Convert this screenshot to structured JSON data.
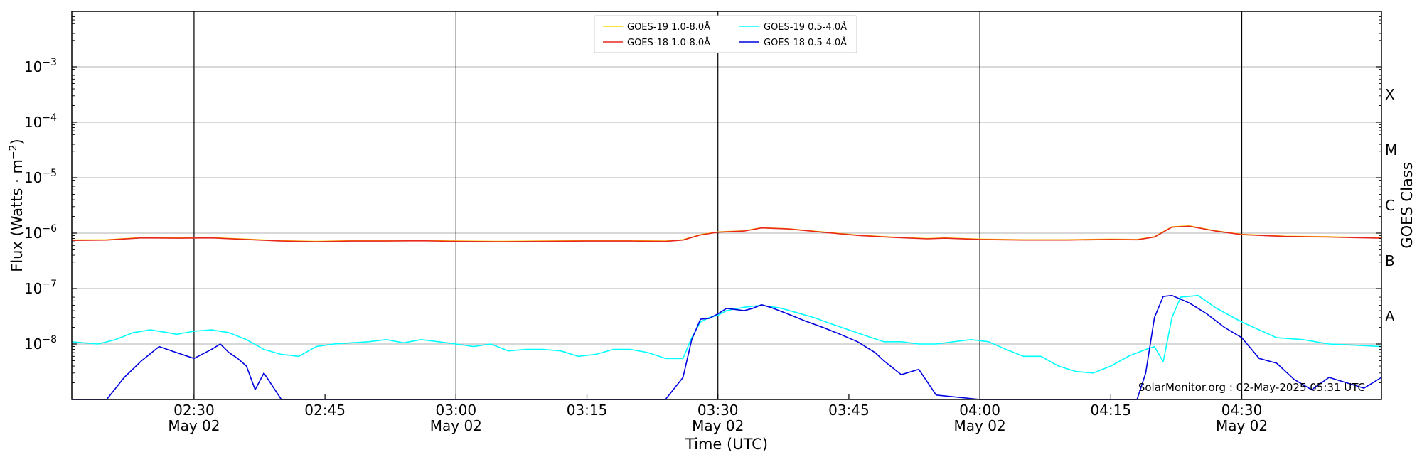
{
  "chart_data": {
    "type": "line",
    "title": "",
    "xlabel": "Time (UTC)",
    "ylabel": "Flux (Watts · m",
    "ylabel_sup": "−2",
    "ylabel_end": ")",
    "right_label": "GOES Class",
    "y_scale": "log",
    "xlim": [
      "02:16",
      "04:46"
    ],
    "ylim": [
      1e-09,
      0.01
    ],
    "x_ticks": [
      {
        "t": "02:30",
        "label": "02:30",
        "sub": "May 02"
      },
      {
        "t": "02:45",
        "label": "02:45",
        "sub": ""
      },
      {
        "t": "03:00",
        "label": "03:00",
        "sub": "May 02"
      },
      {
        "t": "03:15",
        "label": "03:15",
        "sub": ""
      },
      {
        "t": "03:30",
        "label": "03:30",
        "sub": "May 02"
      },
      {
        "t": "03:45",
        "label": "03:45",
        "sub": ""
      },
      {
        "t": "04:00",
        "label": "04:00",
        "sub": "May 02"
      },
      {
        "t": "04:15",
        "label": "04:15",
        "sub": ""
      },
      {
        "t": "04:30",
        "label": "04:30",
        "sub": "May 02"
      }
    ],
    "y_ticks": [
      {
        "exp": -8,
        "label": "10",
        "sup": "−8"
      },
      {
        "exp": -7,
        "label": "10",
        "sup": "−7"
      },
      {
        "exp": -6,
        "label": "10",
        "sup": "−6"
      },
      {
        "exp": -5,
        "label": "10",
        "sup": "−5"
      },
      {
        "exp": -4,
        "label": "10",
        "sup": "−4"
      },
      {
        "exp": -3,
        "label": "10",
        "sup": "−3"
      }
    ],
    "goes_classes": [
      {
        "label": "A",
        "exp": -7.5
      },
      {
        "label": "B",
        "exp": -6.5
      },
      {
        "label": "C",
        "exp": -5.5
      },
      {
        "label": "M",
        "exp": -4.5
      },
      {
        "label": "X",
        "exp": -3.5
      }
    ],
    "vlines": [
      "02:30",
      "03:00",
      "03:30",
      "04:00",
      "04:30"
    ],
    "grid": "horizontal",
    "legend_position": "top-center",
    "footer": "SolarMonitor.org : 02-May-2025 05:31 UTC",
    "series": [
      {
        "name": "GOES-19 1.0-8.0Å",
        "color": "#ffd700",
        "x": [
          "02:16",
          "02:20",
          "02:24",
          "02:28",
          "02:32",
          "02:36",
          "02:40",
          "02:44",
          "02:48",
          "02:52",
          "02:56",
          "03:00",
          "03:05",
          "03:10",
          "03:15",
          "03:20",
          "03:24",
          "03:26",
          "03:28",
          "03:30",
          "03:33",
          "03:35",
          "03:38",
          "03:42",
          "03:46",
          "03:50",
          "03:54",
          "03:56",
          "04:00",
          "04:05",
          "04:10",
          "04:15",
          "04:18",
          "04:20",
          "04:22",
          "04:24",
          "04:27",
          "04:30",
          "04:35",
          "04:40",
          "04:46"
        ],
        "values": [
          7.5e-07,
          7.6e-07,
          8.3e-07,
          8.2e-07,
          8.3e-07,
          7.8e-07,
          7.3e-07,
          7.1e-07,
          7.3e-07,
          7.3e-07,
          7.4e-07,
          7.2e-07,
          7.1e-07,
          7.2e-07,
          7.3e-07,
          7.3e-07,
          7.2e-07,
          7.6e-07,
          9.4e-07,
          1.05e-06,
          1.1e-06,
          1.25e-06,
          1.2e-06,
          1.05e-06,
          9.2e-07,
          8.5e-07,
          8e-07,
          8.2e-07,
          7.8e-07,
          7.6e-07,
          7.6e-07,
          7.8e-07,
          7.7e-07,
          8.6e-07,
          1.3e-06,
          1.35e-06,
          1.1e-06,
          9.5e-07,
          8.8e-07,
          8.6e-07,
          8.2e-07
        ]
      },
      {
        "name": "GOES-18 1.0-8.0Å",
        "color": "#e8281e",
        "x": [
          "02:16",
          "02:20",
          "02:24",
          "02:28",
          "02:32",
          "02:36",
          "02:40",
          "02:44",
          "02:48",
          "02:52",
          "02:56",
          "03:00",
          "03:05",
          "03:10",
          "03:15",
          "03:20",
          "03:24",
          "03:26",
          "03:28",
          "03:30",
          "03:33",
          "03:35",
          "03:38",
          "03:42",
          "03:46",
          "03:50",
          "03:54",
          "03:56",
          "04:00",
          "04:05",
          "04:10",
          "04:15",
          "04:18",
          "04:20",
          "04:22",
          "04:24",
          "04:27",
          "04:30",
          "04:35",
          "04:40",
          "04:46"
        ],
        "values": [
          7.4e-07,
          7.5e-07,
          8.2e-07,
          8.1e-07,
          8.2e-07,
          7.7e-07,
          7.2e-07,
          7e-07,
          7.2e-07,
          7.2e-07,
          7.3e-07,
          7.1e-07,
          7e-07,
          7.1e-07,
          7.2e-07,
          7.2e-07,
          7.1e-07,
          7.5e-07,
          9.3e-07,
          1.04e-06,
          1.09e-06,
          1.24e-06,
          1.19e-06,
          1.04e-06,
          9.1e-07,
          8.4e-07,
          7.9e-07,
          8.1e-07,
          7.7e-07,
          7.5e-07,
          7.5e-07,
          7.7e-07,
          7.6e-07,
          8.5e-07,
          1.28e-06,
          1.33e-06,
          1.09e-06,
          9.4e-07,
          8.7e-07,
          8.5e-07,
          8.1e-07
        ]
      },
      {
        "name": "GOES-19 0.5-4.0Å",
        "color": "#00ffff",
        "x": [
          "02:16",
          "02:19",
          "02:21",
          "02:23",
          "02:25",
          "02:27",
          "02:28",
          "02:30",
          "02:32",
          "02:34",
          "02:36",
          "02:38",
          "02:40",
          "02:42",
          "02:44",
          "02:46",
          "02:48",
          "02:50",
          "02:52",
          "02:54",
          "02:56",
          "02:58",
          "03:00",
          "03:02",
          "03:04",
          "03:06",
          "03:08",
          "03:10",
          "03:12",
          "03:14",
          "03:16",
          "03:18",
          "03:20",
          "03:22",
          "03:24",
          "03:26",
          "03:27",
          "03:28",
          "03:29",
          "03:30",
          "03:31",
          "03:33",
          "03:35",
          "03:37",
          "03:39",
          "03:41",
          "03:43",
          "03:45",
          "03:47",
          "03:49",
          "03:51",
          "03:53",
          "03:55",
          "03:57",
          "03:59",
          "04:01",
          "04:03",
          "04:05",
          "04:07",
          "04:09",
          "04:11",
          "04:13",
          "04:15",
          "04:17",
          "04:19",
          "04:20",
          "04:21",
          "04:22",
          "04:23",
          "04:25",
          "04:27",
          "04:30",
          "04:32",
          "04:34",
          "04:37",
          "04:40",
          "04:43",
          "04:46"
        ],
        "values": [
          1.1e-08,
          1e-08,
          1.2e-08,
          1.6e-08,
          1.8e-08,
          1.6e-08,
          1.5e-08,
          1.7e-08,
          1.8e-08,
          1.6e-08,
          1.2e-08,
          8e-09,
          6.5e-09,
          6e-09,
          9e-09,
          1e-08,
          1.05e-08,
          1.1e-08,
          1.2e-08,
          1.05e-08,
          1.2e-08,
          1.1e-08,
          1e-08,
          9e-09,
          1e-08,
          7.5e-09,
          8e-09,
          8e-09,
          7.5e-09,
          6e-09,
          6.5e-09,
          8e-09,
          8e-09,
          7e-09,
          5.5e-09,
          5.5e-09,
          1.3e-08,
          2.5e-08,
          3e-08,
          3.3e-08,
          4e-08,
          4.6e-08,
          5e-08,
          4.5e-08,
          3.7e-08,
          3e-08,
          2.3e-08,
          1.8e-08,
          1.4e-08,
          1.1e-08,
          1.1e-08,
          1e-08,
          1e-08,
          1.1e-08,
          1.2e-08,
          1.1e-08,
          8e-09,
          6e-09,
          6e-09,
          4e-09,
          3.2e-09,
          3e-09,
          4e-09,
          6e-09,
          8e-09,
          9e-09,
          4.8e-09,
          3e-08,
          7e-08,
          7.5e-08,
          4.5e-08,
          2.5e-08,
          1.8e-08,
          1.3e-08,
          1.2e-08,
          1e-08,
          9.5e-09,
          9e-09
        ]
      },
      {
        "name": "GOES-18 0.5-4.0Å",
        "color": "#0000e0",
        "x": [
          "02:16",
          "02:18",
          "02:20",
          "02:22",
          "02:24",
          "02:26",
          "02:28",
          "02:30",
          "02:32",
          "02:33",
          "02:34",
          "02:35",
          "02:36",
          "02:37",
          "02:38",
          "02:40",
          "02:42",
          "02:44",
          "03:00",
          "03:15",
          "03:24",
          "03:26",
          "03:27",
          "03:28",
          "03:29",
          "03:30",
          "03:31",
          "03:32",
          "03:33",
          "03:34",
          "03:35",
          "03:36",
          "03:38",
          "03:40",
          "03:42",
          "03:44",
          "03:46",
          "03:48",
          "03:49",
          "03:51",
          "03:53",
          "03:55",
          "04:00",
          "04:10",
          "04:18",
          "04:19",
          "04:20",
          "04:21",
          "04:22",
          "04:24",
          "04:26",
          "04:28",
          "04:30",
          "04:32",
          "04:34",
          "04:36",
          "04:38",
          "04:40",
          "04:42",
          "04:44",
          "04:46"
        ],
        "values": [
          1e-09,
          1e-09,
          1e-09,
          2.5e-09,
          5e-09,
          9e-09,
          7e-09,
          5.5e-09,
          8e-09,
          1e-08,
          7e-09,
          5.5e-09,
          4e-09,
          1.5e-09,
          3e-09,
          1e-09,
          1e-09,
          1e-09,
          1e-09,
          1e-09,
          1e-09,
          2.5e-09,
          1.2e-08,
          2.8e-08,
          2.9e-08,
          3.5e-08,
          4.4e-08,
          4.2e-08,
          4e-08,
          4.4e-08,
          5.1e-08,
          4.6e-08,
          3.5e-08,
          2.6e-08,
          2e-08,
          1.5e-08,
          1.1e-08,
          7e-09,
          5e-09,
          2.8e-09,
          3.5e-09,
          1.2e-09,
          1e-09,
          1e-09,
          1e-09,
          3e-09,
          3e-08,
          7.2e-08,
          7.5e-08,
          5.5e-08,
          3.5e-08,
          2e-08,
          1.3e-08,
          5.5e-09,
          4.5e-09,
          2.3e-09,
          1.5e-09,
          2.5e-09,
          2e-09,
          1.6e-09,
          2.5e-09
        ]
      }
    ]
  }
}
